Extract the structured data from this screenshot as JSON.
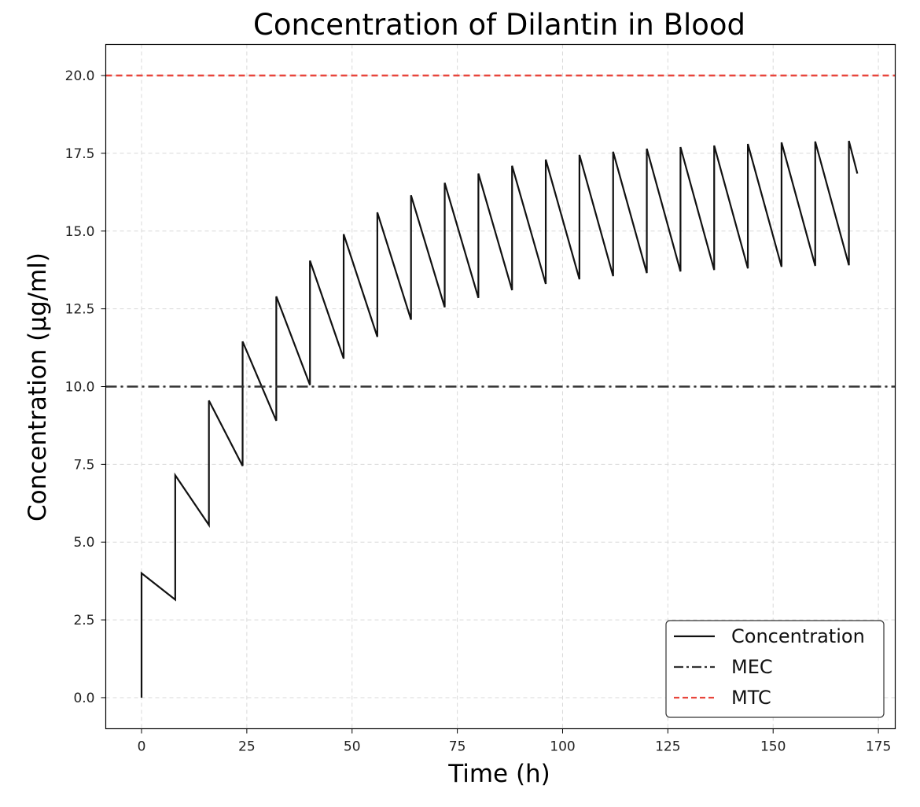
{
  "chart_data": {
    "type": "line",
    "title": "Concentration of Dilantin in Blood",
    "xlabel": "Time (h)",
    "ylabel": "Concentration (μg/ml)",
    "xlim": [
      -8.5,
      179
    ],
    "ylim": [
      -1,
      21
    ],
    "xticks": [
      0,
      25,
      50,
      75,
      100,
      125,
      150,
      175
    ],
    "yticks": [
      0.0,
      2.5,
      5.0,
      7.5,
      10.0,
      12.5,
      15.0,
      17.5,
      20.0
    ],
    "ytick_labels": [
      "0.0",
      "2.5",
      "5.0",
      "7.5",
      "10.0",
      "12.5",
      "15.0",
      "17.5",
      "20.0"
    ],
    "grid": true,
    "legend_position": "lower-right",
    "series": [
      {
        "name": "Concentration",
        "style": "solid",
        "color": "#111111",
        "points": [
          [
            0,
            0
          ],
          [
            0,
            4.0
          ],
          [
            8,
            3.15
          ],
          [
            8,
            7.15
          ],
          [
            16,
            5.55
          ],
          [
            16,
            9.55
          ],
          [
            24,
            7.45
          ],
          [
            24,
            11.45
          ],
          [
            32,
            8.9
          ],
          [
            32,
            12.9
          ],
          [
            40,
            10.05
          ],
          [
            40,
            14.05
          ],
          [
            48,
            10.9
          ],
          [
            48,
            14.9
          ],
          [
            56,
            11.6
          ],
          [
            56,
            15.6
          ],
          [
            64,
            12.15
          ],
          [
            64,
            16.15
          ],
          [
            72,
            12.55
          ],
          [
            72,
            16.55
          ],
          [
            80,
            12.85
          ],
          [
            80,
            16.85
          ],
          [
            88,
            13.1
          ],
          [
            88,
            17.1
          ],
          [
            96,
            13.3
          ],
          [
            96,
            17.3
          ],
          [
            104,
            13.45
          ],
          [
            104,
            17.45
          ],
          [
            112,
            13.55
          ],
          [
            112,
            17.55
          ],
          [
            120,
            13.65
          ],
          [
            120,
            17.65
          ],
          [
            128,
            13.7
          ],
          [
            128,
            17.7
          ],
          [
            136,
            13.75
          ],
          [
            136,
            17.75
          ],
          [
            144,
            13.8
          ],
          [
            144,
            17.8
          ],
          [
            152,
            13.85
          ],
          [
            152,
            17.85
          ],
          [
            160,
            13.88
          ],
          [
            160,
            17.88
          ],
          [
            168,
            13.9
          ],
          [
            168,
            17.9
          ],
          [
            170,
            16.85
          ]
        ]
      },
      {
        "name": "MEC",
        "style": "dashdot",
        "color": "#333333",
        "y": 10.0
      },
      {
        "name": "MTC",
        "style": "dashed",
        "color": "#e8453c",
        "y": 20.0
      }
    ]
  }
}
